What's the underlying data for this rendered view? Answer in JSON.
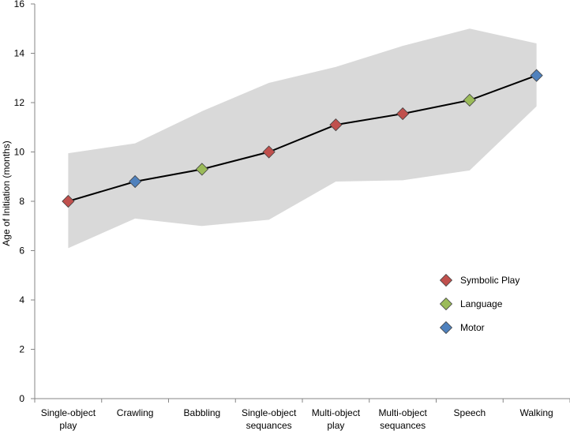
{
  "chart_data": {
    "type": "line",
    "title": "",
    "xlabel": "",
    "ylabel": "Age of Initiation (months)",
    "ylim": [
      0,
      16
    ],
    "yticks": [
      0,
      2,
      4,
      6,
      8,
      10,
      12,
      14,
      16
    ],
    "categories": [
      [
        "Single-object",
        "play"
      ],
      [
        "Crawling"
      ],
      [
        "Babbling"
      ],
      [
        "Single-object",
        "sequances"
      ],
      [
        "Multi-object",
        "play"
      ],
      [
        "Multi-object",
        "sequances"
      ],
      [
        "Speech"
      ],
      [
        "Walking"
      ]
    ],
    "values": [
      8.0,
      8.8,
      9.3,
      10.0,
      11.1,
      11.55,
      12.1,
      13.1
    ],
    "range_upper": [
      9.95,
      10.35,
      11.65,
      12.8,
      13.45,
      14.3,
      15.0,
      14.4
    ],
    "range_lower": [
      6.1,
      7.3,
      7.0,
      7.25,
      8.8,
      8.85,
      9.25,
      11.85
    ],
    "point_groups": [
      "Symbolic Play",
      "Motor",
      "Language",
      "Symbolic Play",
      "Symbolic Play",
      "Symbolic Play",
      "Language",
      "Motor"
    ],
    "legend": [
      {
        "name": "Symbolic Play",
        "color": "#c0504d"
      },
      {
        "name": "Language",
        "color": "#9bbb59"
      },
      {
        "name": "Motor",
        "color": "#4f81bd"
      }
    ],
    "legend_position": "right",
    "band_color": "#d9d9d9",
    "line_color": "#000000",
    "grid": false
  }
}
